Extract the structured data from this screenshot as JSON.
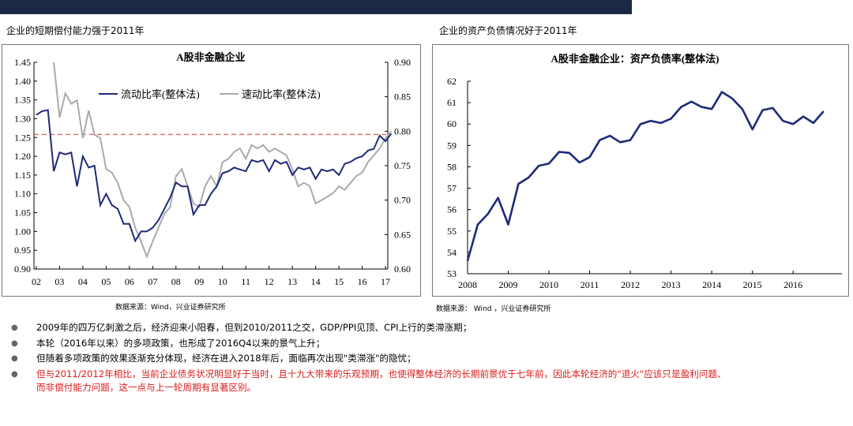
{
  "header": {
    "bar_color": "#1b2a44"
  },
  "left_section": {
    "title": "企业的短期偿付能力强于2011年",
    "source": "数据来源：Wind，兴业证券研究所"
  },
  "right_section": {
    "title": "企业的资产负债情况好于2011年",
    "source": "数据来源： Wind ，兴业证券研究所"
  },
  "bullets": [
    {
      "text": "2009年的四万亿刺激之后，经济迎来小阳春，但到2010/2011之交，GDP/PPI见顶、CPI上行的类滞涨期；",
      "color": "#000000"
    },
    {
      "text": "本轮（2016年以来）的多项政策，也形成了2016Q4以来的景气上升；",
      "color": "#000000"
    },
    {
      "text": "但随着多项政策的效果逐渐充分体现，经济在进入2018年后，面临再次出现\"类滞涨\"的隐忧；",
      "color": "#000000"
    },
    {
      "text": "但与2011/2012年相比，当前企业债务状况明显好于当时，且十九大带来的乐观预期，也使得整体经济的长期前景优于七年前，因此本轮经济的\"退火\"应该只是盈利问题、",
      "text2": "而非偿付能力问题，这一点与上一轮周期有显著区别。",
      "color": "#d81b1b"
    }
  ],
  "chart_data": [
    {
      "type": "line",
      "title": "A股非金融企业",
      "x_start": 2002.0,
      "x_step": 0.25,
      "xlim": [
        2001.9,
        2017.1
      ],
      "xticks": [
        "02",
        "03",
        "04",
        "05",
        "06",
        "07",
        "08",
        "09",
        "10",
        "11",
        "12",
        "13",
        "14",
        "15",
        "16",
        "17"
      ],
      "ylim_left": [
        0.9,
        1.45
      ],
      "yticks_left": [
        "0.90",
        "0.95",
        "1.00",
        "1.05",
        "1.10",
        "1.15",
        "1.20",
        "1.25",
        "1.30",
        "1.35",
        "1.40",
        "1.45"
      ],
      "ylim_right": [
        0.6,
        0.9
      ],
      "yticks_right": [
        "0.60",
        "0.65",
        "0.70",
        "0.75",
        "0.80",
        "0.85",
        "0.90"
      ],
      "reference_line": {
        "axis": "left",
        "value": 1.258,
        "color": "#e06666",
        "style": "dashed"
      },
      "series": [
        {
          "name": "流动比率(整体法)",
          "axis": "left",
          "color": "#1f2a78",
          "values": [
            1.31,
            1.32,
            1.323,
            1.16,
            1.21,
            1.205,
            1.21,
            1.12,
            1.2,
            1.17,
            1.175,
            1.07,
            1.1,
            1.07,
            1.06,
            1.02,
            1.02,
            0.975,
            1.0,
            1.0,
            1.01,
            1.03,
            1.06,
            1.09,
            1.13,
            1.12,
            1.12,
            1.045,
            1.07,
            1.07,
            1.1,
            1.12,
            1.155,
            1.16,
            1.17,
            1.165,
            1.16,
            1.19,
            1.185,
            1.19,
            1.16,
            1.19,
            1.18,
            1.185,
            1.15,
            1.17,
            1.165,
            1.17,
            1.14,
            1.165,
            1.16,
            1.165,
            1.15,
            1.18,
            1.185,
            1.195,
            1.2,
            1.215,
            1.22,
            1.255,
            1.24,
            1.26
          ]
        },
        {
          "name": "速动比率(整体法)",
          "axis": "right",
          "color": "#aaaaaa",
          "values": [
            null,
            null,
            null,
            0.9,
            0.82,
            0.855,
            0.84,
            0.845,
            0.79,
            0.83,
            0.795,
            0.79,
            0.745,
            0.74,
            0.725,
            0.7,
            0.69,
            0.66,
            0.64,
            0.618,
            0.64,
            0.66,
            0.68,
            0.69,
            0.735,
            0.745,
            0.72,
            0.695,
            0.69,
            0.72,
            0.735,
            0.72,
            0.755,
            0.76,
            0.77,
            0.775,
            0.76,
            0.78,
            0.775,
            0.78,
            0.77,
            0.775,
            0.77,
            0.765,
            0.745,
            0.72,
            0.725,
            0.72,
            0.695,
            0.7,
            0.705,
            0.71,
            0.72,
            0.715,
            0.725,
            0.735,
            0.74,
            0.755,
            0.765,
            0.775,
            0.79,
            0.8
          ]
        }
      ]
    },
    {
      "type": "line",
      "title": "A股非金融企业：资产负债率(整体法)",
      "x_start": 2008.0,
      "x_step": 0.25,
      "xlim": [
        2008.0,
        2017.2
      ],
      "xticks": [
        "2008",
        "2009",
        "2010",
        "2011",
        "2012",
        "2013",
        "2014",
        "2015",
        "2016"
      ],
      "ylim": [
        53,
        62
      ],
      "yticks": [
        "53",
        "54",
        "55",
        "56",
        "57",
        "58",
        "59",
        "60",
        "61",
        "62"
      ],
      "series": [
        {
          "name": "资产负债率(整体法)",
          "color": "#1f2a78",
          "values": [
            53.6,
            55.3,
            55.8,
            56.55,
            55.3,
            57.2,
            57.5,
            58.05,
            58.15,
            58.7,
            58.65,
            58.2,
            58.45,
            59.25,
            59.45,
            59.15,
            59.25,
            60.0,
            60.15,
            60.05,
            60.25,
            60.8,
            61.05,
            60.8,
            60.7,
            61.5,
            61.2,
            60.7,
            59.75,
            60.65,
            60.75,
            60.15,
            60.0,
            60.35,
            60.05,
            60.6
          ]
        }
      ]
    }
  ]
}
